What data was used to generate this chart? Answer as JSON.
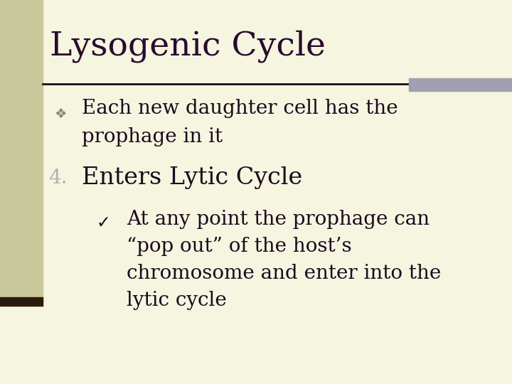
{
  "title": "Lysogenic Cycle",
  "slide_bg": "#f5f5e0",
  "title_color": "#2a0a2e",
  "text_color": "#1a0a1e",
  "left_bar_color": "#c8c89a",
  "left_bar_dark": "#2a1a0e",
  "line_color": "#1a0a1e",
  "top_right_rect_color": "#a0a0b0",
  "title_fontsize": 34,
  "body_fontsize": 20,
  "bullet2_fontsize": 24,
  "bullet1_marker": "❖",
  "bullet1_line1": "Each new daughter cell has the",
  "bullet1_line2": "prophage in it",
  "bullet2_num": "4.",
  "bullet2_num_color": "#b0b0b0",
  "bullet2": "Enters Lytic Cycle",
  "bullet3_marker": "✓",
  "bullet3_line1": "At any point the prophage can",
  "bullet3_line2": "“pop out” of the host’s",
  "bullet3_line3": "chromosome and enter into the",
  "bullet3_line4": "lytic cycle"
}
